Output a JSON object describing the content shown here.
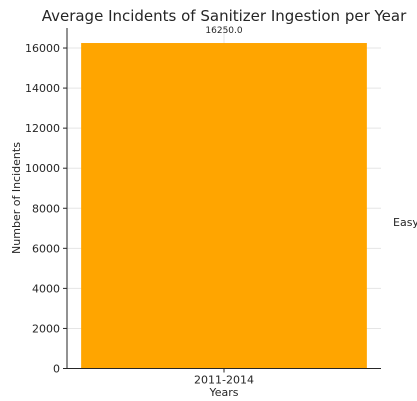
{
  "chart_data": {
    "type": "bar",
    "title": "Average Incidents of Sanitizer Ingestion per Year",
    "xlabel": "Years",
    "ylabel": "Number of Incidents",
    "categories": [
      "2011-2014"
    ],
    "values": [
      16250.0
    ],
    "data_labels": [
      "16250.0"
    ],
    "ylim": [
      0,
      17000
    ],
    "yticks": [
      0,
      2000,
      4000,
      6000,
      8000,
      10000,
      12000,
      14000,
      16000
    ],
    "grid": true,
    "bar_color": "#ffa500",
    "side_text": "Easy"
  }
}
